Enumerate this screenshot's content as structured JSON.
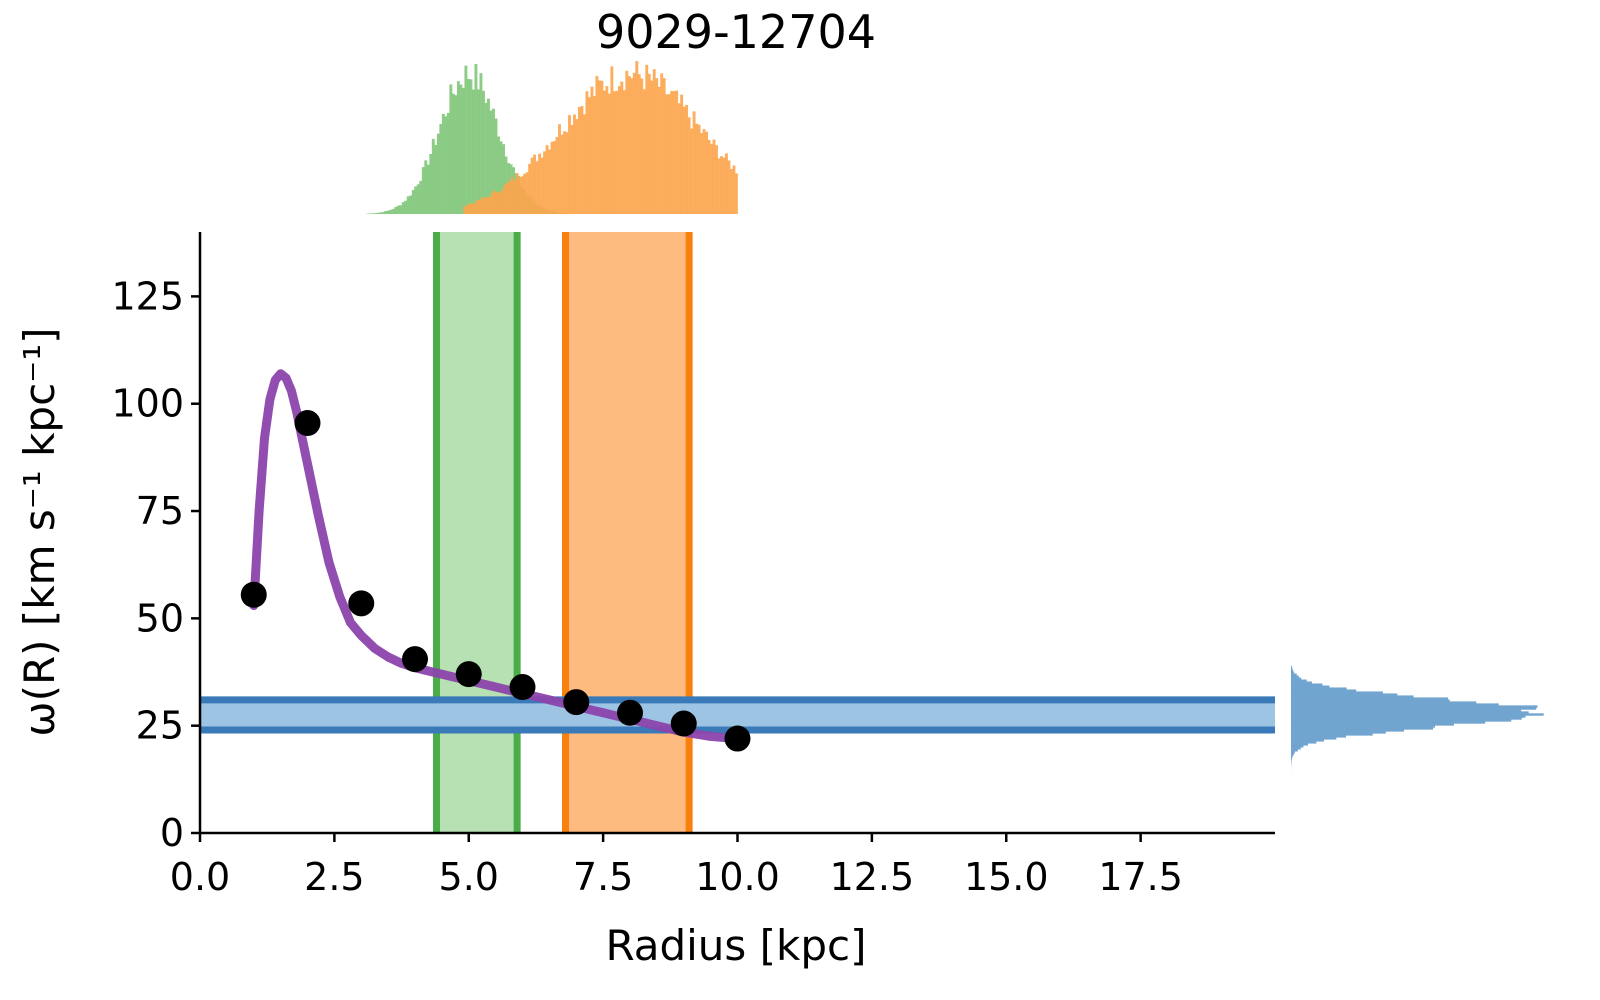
{
  "chart_data": {
    "type": "scatter",
    "title": "9029-12704",
    "xlabel": "Radius [kpc]",
    "ylabel": "ω(R) [km s⁻¹ kpc⁻¹]",
    "xlim": [
      0,
      20
    ],
    "ylim": [
      0,
      140
    ],
    "x_ticks": [
      "0.0",
      "2.5",
      "5.0",
      "7.5",
      "10.0",
      "12.5",
      "15.0",
      "17.5"
    ],
    "y_ticks": [
      "0",
      "25",
      "50",
      "75",
      "100",
      "125"
    ],
    "grid": false,
    "points": {
      "x": [
        1,
        2,
        3,
        4,
        5,
        6,
        7,
        8,
        9,
        10
      ],
      "y": [
        55.5,
        95.5,
        53.5,
        40.5,
        37,
        34,
        30.5,
        28,
        25.5,
        22
      ]
    },
    "model_curve": {
      "x": [
        1.0,
        1.1,
        1.2,
        1.3,
        1.4,
        1.5,
        1.6,
        1.7,
        1.8,
        1.9,
        2.0,
        2.2,
        2.4,
        2.6,
        2.8,
        3.0,
        3.25,
        3.5,
        3.75,
        4.0,
        4.5,
        5.0,
        5.5,
        6.0,
        6.5,
        7.0,
        7.5,
        8.0,
        8.5,
        9.0,
        9.5,
        10.0
      ],
      "y": [
        53,
        75,
        92,
        101,
        105.5,
        107,
        106,
        103,
        98,
        92,
        86,
        74,
        63,
        55,
        49,
        46,
        43,
        41,
        39.5,
        38.5,
        37,
        35.5,
        34,
        32.5,
        31,
        29.5,
        28,
        26.5,
        25,
        23.5,
        22.5,
        22
      ]
    },
    "model_color": "#8b44ac",
    "points_color": "#000000",
    "bands": [
      {
        "axis": "x",
        "lo": 4.4,
        "hi": 5.9,
        "fill": "#b7e0b3",
        "edge": "#4aad4a"
      },
      {
        "axis": "x",
        "lo": 6.8,
        "hi": 9.1,
        "fill": "#fdbb7f",
        "edge": "#f97f0f"
      },
      {
        "axis": "y",
        "lo": 24,
        "hi": 31,
        "fill": "#9ec4e4",
        "edge": "#3a7ab8"
      }
    ],
    "marginal_histograms": [
      {
        "position": "top",
        "color": "#7fc77a",
        "x_range": [
          3.1,
          7.3
        ],
        "peak": 5.0,
        "sigma": 0.55
      },
      {
        "position": "top",
        "color": "#fca54c",
        "x_range": [
          4.9,
          10.0
        ],
        "peak": 8.0,
        "sigma": 1.3
      },
      {
        "position": "right",
        "color": "#71a5d0",
        "y_range": [
          1,
          39
        ],
        "peak": 28,
        "sigma": 3.2
      }
    ]
  }
}
